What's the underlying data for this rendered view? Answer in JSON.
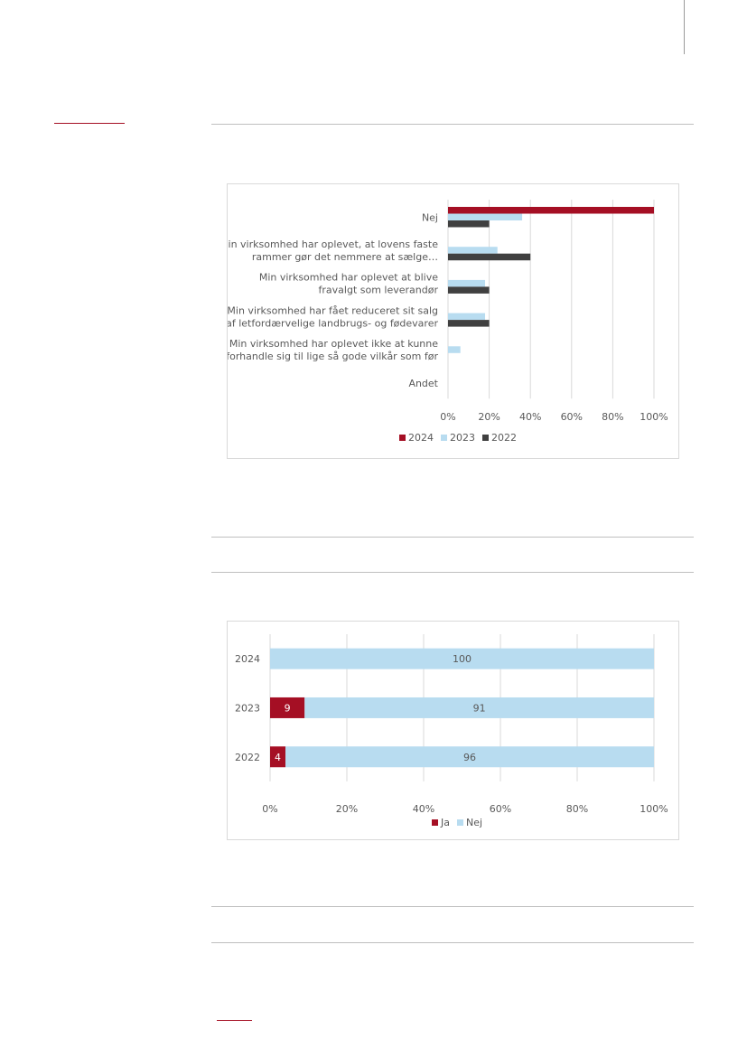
{
  "colors": {
    "accent_red": "#a50f24",
    "light_blue": "#b8dcf0",
    "dark_gray": "#404040",
    "grid": "#d9d9d9",
    "rule": "#bfbfbf",
    "text": "#595959"
  },
  "chart_data": [
    {
      "type": "bar",
      "orientation": "horizontal",
      "title": "",
      "xlabel": "",
      "ylabel": "",
      "categories": [
        "Nej",
        "Min virksomhed har oplevet, at lovens faste rammer gør det nemmere at sælge…",
        "Min virksomhed har oplevet at blive fravalgt som leverandør",
        "Min virksomhed har fået reduceret sit salg af letfordærvelige landbrugs- og fødevarer",
        "Min virksomhed har oplevet ikke at kunne forhandle sig til lige så gode vilkår som før",
        "Andet"
      ],
      "category_lines": [
        [
          "Nej"
        ],
        [
          "Min virksomhed har oplevet, at lovens faste",
          "rammer gør det nemmere at sælge…"
        ],
        [
          "Min virksomhed har oplevet at blive",
          "fravalgt som leverandør"
        ],
        [
          "Min virksomhed har fået reduceret sit salg",
          "af letfordærvelige landbrugs- og fødevarer"
        ],
        [
          "Min virksomhed har oplevet ikke at kunne",
          "forhandle sig til lige så gode vilkår som før"
        ],
        [
          "Andet"
        ]
      ],
      "series": [
        {
          "name": "2024",
          "color": "#a50f24",
          "values": [
            100,
            0,
            0,
            0,
            0,
            0
          ]
        },
        {
          "name": "2023",
          "color": "#b8dcf0",
          "values": [
            36,
            24,
            18,
            18,
            6,
            0
          ]
        },
        {
          "name": "2022",
          "color": "#404040",
          "values": [
            20,
            40,
            20,
            20,
            0,
            0
          ]
        }
      ],
      "xlim": [
        0,
        100
      ],
      "ticks": [
        "0%",
        "20%",
        "40%",
        "60%",
        "80%",
        "100%"
      ],
      "grid": true,
      "legend_position": "bottom"
    },
    {
      "type": "bar",
      "orientation": "horizontal",
      "stacked": "percent",
      "title": "",
      "xlabel": "",
      "ylabel": "",
      "categories": [
        "2024",
        "2023",
        "2022"
      ],
      "series": [
        {
          "name": "Ja",
          "color": "#a50f24",
          "values": [
            0,
            9,
            4
          ],
          "labels": [
            "",
            "9",
            "4"
          ]
        },
        {
          "name": "Nej",
          "color": "#b8dcf0",
          "values": [
            100,
            91,
            96
          ],
          "labels": [
            "100",
            "91",
            "96"
          ]
        }
      ],
      "xlim": [
        0,
        100
      ],
      "ticks": [
        "0%",
        "20%",
        "40%",
        "60%",
        "80%",
        "100%"
      ],
      "grid": true,
      "legend_position": "bottom"
    }
  ]
}
